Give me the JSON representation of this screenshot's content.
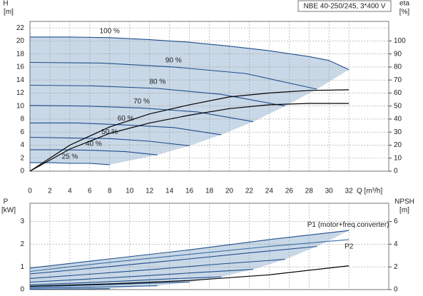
{
  "chart_data": [
    {
      "type": "line",
      "title": "NBE 40-250/245, 3*400 V",
      "ylabel": "H",
      "yunit": "[m]",
      "y2label": "eta",
      "y2unit": "[%]",
      "xlabel": "Q [m³/h]",
      "xlim": [
        0,
        36
      ],
      "xticks": [
        0,
        2,
        4,
        6,
        8,
        10,
        12,
        14,
        16,
        18,
        20,
        22,
        24,
        26,
        28,
        30,
        32
      ],
      "ylim": [
        0,
        23
      ],
      "yticks": [
        0,
        2,
        4,
        6,
        8,
        10,
        12,
        14,
        16,
        18,
        20,
        22
      ],
      "y2lim": [
        0,
        115
      ],
      "y2ticks": [
        0,
        10,
        20,
        30,
        40,
        50,
        60,
        70,
        80,
        90,
        100
      ],
      "grid": true,
      "area_color": "#c9d8e7",
      "series": [
        {
          "name": "100 %",
          "color": "#1f4e8c",
          "x": [
            0,
            4,
            8,
            12,
            16,
            20,
            24,
            28,
            30,
            32
          ],
          "values": [
            20.6,
            20.6,
            20.5,
            20.2,
            19.8,
            19.2,
            18.5,
            17.6,
            17.0,
            15.6
          ]
        },
        {
          "name": "90 %",
          "color": "#1f4e8c",
          "x": [
            0,
            7.2,
            14.4,
            21.6,
            28.8
          ],
          "values": [
            16.7,
            16.6,
            16.0,
            15.0,
            12.6
          ]
        },
        {
          "name": "80 %",
          "color": "#1f4e8c",
          "x": [
            0,
            6.4,
            12.8,
            19.2,
            25.6
          ],
          "values": [
            13.2,
            13.1,
            12.7,
            11.8,
            10.0
          ]
        },
        {
          "name": "70 %",
          "color": "#1f4e8c",
          "x": [
            0,
            5.6,
            11.2,
            16.8,
            22.4
          ],
          "values": [
            10.1,
            10.0,
            9.7,
            9.1,
            7.6
          ]
        },
        {
          "name": "60 %",
          "color": "#1f4e8c",
          "x": [
            0,
            4.8,
            9.6,
            14.4,
            19.2
          ],
          "values": [
            7.4,
            7.4,
            7.1,
            6.7,
            5.6
          ]
        },
        {
          "name": "50 %",
          "color": "#1f4e8c",
          "x": [
            0,
            4,
            8,
            12,
            16
          ],
          "values": [
            5.2,
            5.1,
            5.0,
            4.6,
            3.9
          ]
        },
        {
          "name": "40 %",
          "color": "#1f4e8c",
          "x": [
            0,
            3.2,
            6.4,
            9.6,
            12.8
          ],
          "values": [
            3.3,
            3.3,
            3.2,
            3.0,
            2.5
          ]
        },
        {
          "name": "25 %",
          "color": "#1f4e8c",
          "x": [
            0,
            2,
            4,
            6,
            8
          ],
          "values": [
            1.3,
            1.3,
            1.2,
            1.2,
            1.0
          ]
        },
        {
          "axis": "y2",
          "color": "#000000",
          "x": [
            0,
            4,
            8,
            12,
            16,
            20,
            24,
            28,
            32
          ],
          "values": [
            0,
            20,
            34,
            44,
            51,
            57,
            60,
            62,
            62.5
          ]
        },
        {
          "axis": "y2",
          "color": "#000000",
          "x": [
            0,
            4,
            8,
            12,
            16,
            20,
            24,
            28,
            32
          ],
          "values": [
            0,
            17,
            29,
            37,
            43,
            48,
            51,
            52,
            52
          ]
        }
      ]
    },
    {
      "type": "line",
      "ylabel": "P",
      "yunit": "[kW]",
      "y2label": "NPSH",
      "y2unit": "[m]",
      "xlim": [
        0,
        36
      ],
      "xticks": [
        0,
        2,
        4,
        6,
        8,
        10,
        12,
        14,
        16,
        18,
        20,
        22,
        24,
        26,
        28,
        30,
        32
      ],
      "ylim": [
        0,
        3.8
      ],
      "yticks": [
        0,
        1,
        2,
        3
      ],
      "y2lim": [
        0,
        7.6
      ],
      "y2ticks": [
        0,
        2,
        4,
        6
      ],
      "grid": true,
      "area_color": "#c9d8e7",
      "series": [
        {
          "name": "P1 (motor+freq.converter)",
          "color": "#1f4e8c",
          "x": [
            0,
            8,
            16,
            24,
            32
          ],
          "values": [
            0.95,
            1.35,
            1.75,
            2.2,
            2.6
          ]
        },
        {
          "color": "#1f4e8c",
          "x": [
            0,
            7.2,
            14.4,
            21.6,
            28.8
          ],
          "values": [
            0.69,
            0.98,
            1.28,
            1.6,
            1.9
          ]
        },
        {
          "color": "#1f4e8c",
          "x": [
            0,
            6.4,
            12.8,
            19.2,
            25.6
          ],
          "values": [
            0.49,
            0.69,
            0.9,
            1.13,
            1.33
          ]
        },
        {
          "color": "#1f4e8c",
          "x": [
            0,
            5.6,
            11.2,
            16.8,
            22.4
          ],
          "values": [
            0.33,
            0.46,
            0.6,
            0.75,
            0.89
          ]
        },
        {
          "color": "#1f4e8c",
          "x": [
            0,
            4.8,
            9.6,
            14.4,
            19.2
          ],
          "values": [
            0.21,
            0.29,
            0.38,
            0.48,
            0.56
          ]
        },
        {
          "color": "#1f4e8c",
          "x": [
            0,
            4,
            8,
            12,
            16
          ],
          "values": [
            0.12,
            0.17,
            0.22,
            0.28,
            0.33
          ]
        },
        {
          "color": "#1f4e8c",
          "x": [
            0,
            3.2,
            6.4,
            9.6,
            12.8
          ],
          "values": [
            0.06,
            0.09,
            0.11,
            0.14,
            0.17
          ]
        },
        {
          "color": "#1f4e8c",
          "x": [
            0,
            2,
            4,
            6,
            8
          ],
          "values": [
            0.01,
            0.02,
            0.03,
            0.03,
            0.04
          ]
        },
        {
          "name": "P2",
          "color": "#3a6ea5",
          "x": [
            0,
            8,
            16,
            24,
            32
          ],
          "values": [
            0.8,
            1.2,
            1.55,
            1.9,
            2.2
          ]
        },
        {
          "axis": "y2",
          "color": "#000000",
          "x": [
            0,
            8,
            16,
            24,
            32
          ],
          "values": [
            0.3,
            0.5,
            0.8,
            1.3,
            2.1
          ]
        }
      ]
    }
  ]
}
